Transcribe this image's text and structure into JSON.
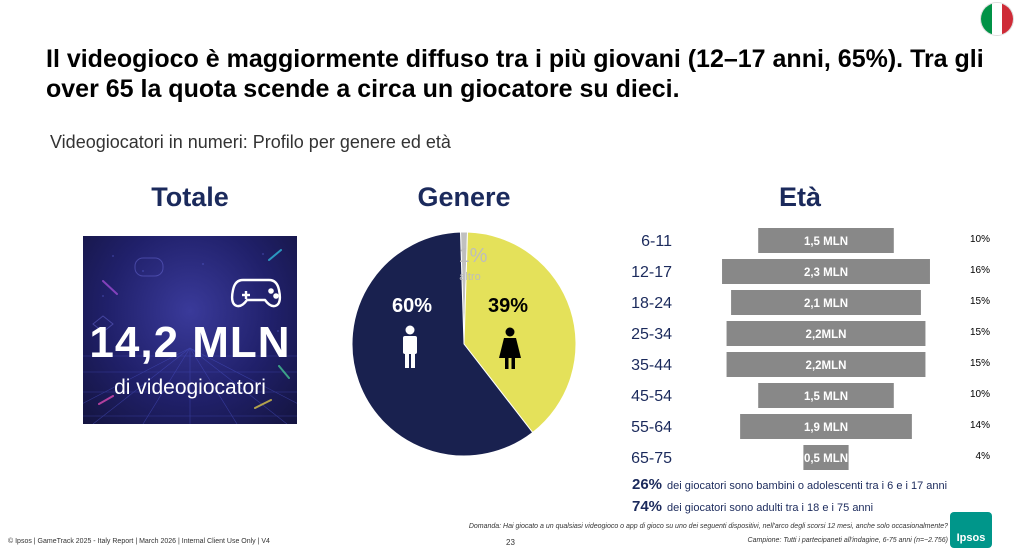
{
  "headline": "Il videogioco è maggiormente diffuso tra i più giovani (12–17 anni, 65%). Tra gli over 65 la quota scende a circa un giocatore su dieci.",
  "subtitle": "Videogiocatori in numeri: Profilo per genere ed età",
  "flag_colors": [
    "#009246",
    "#ffffff",
    "#ce2b37"
  ],
  "totale": {
    "title": "Totale",
    "value": "14,2 MLN",
    "caption": "di videogiocatori",
    "icon": "gamepad-icon"
  },
  "chart_data": [
    {
      "type": "pie",
      "title": "Genere",
      "slices": [
        {
          "key": "male",
          "value": 60,
          "label": "60%",
          "color": "#19214f",
          "icon": "male-icon"
        },
        {
          "key": "other",
          "value": 1,
          "label": "1%",
          "sublabel": "altro",
          "color": "#c0c0c0"
        },
        {
          "key": "female",
          "value": 39,
          "label": "39%",
          "color": "#e4e15a",
          "icon": "female-icon"
        }
      ]
    },
    {
      "type": "bar",
      "orientation": "horizontal",
      "layout": "centered",
      "title": "Età",
      "categories": [
        "6-11",
        "12-17",
        "18-24",
        "25-34",
        "35-44",
        "45-54",
        "55-64",
        "65-75"
      ],
      "values_mln": [
        1.5,
        2.3,
        2.1,
        2.2,
        2.2,
        1.5,
        1.9,
        0.5
      ],
      "bar_labels": [
        "1,5 MLN",
        "2,3 MLN",
        "2,1 MLN",
        "2,2MLN",
        "2,2MLN",
        "1,5 MLN",
        "1,9 MLN",
        "0,5 MLN"
      ],
      "percent_labels": [
        "10%",
        "16%",
        "15%",
        "15%",
        "15%",
        "10%",
        "14%",
        "4%"
      ],
      "bar_color": "#888888"
    }
  ],
  "stats": [
    {
      "value": "26%",
      "text": "dei giocatori sono bambini o adolescenti tra i 6 e i 17 anni"
    },
    {
      "value": "74%",
      "text": "dei giocatori sono adulti tra i 18 e i 75 anni"
    }
  ],
  "domanda": "Domanda: Hai giocato a un qualsiasi videogioco o app di gioco su uno dei seguenti dispositivi, nell'arco degli scorsi 12 mesi, anche solo occasionalmente?",
  "campione": "Campione: Tutti i partecipaneti all'indagine, 6-75 anni (n=~2.756)",
  "footer": "© Ipsos | GameTrack 2025 - Italy Report | March 2026 | Internal Client Use Only | V4",
  "page_number": "23",
  "logo_text": "Ipsos"
}
